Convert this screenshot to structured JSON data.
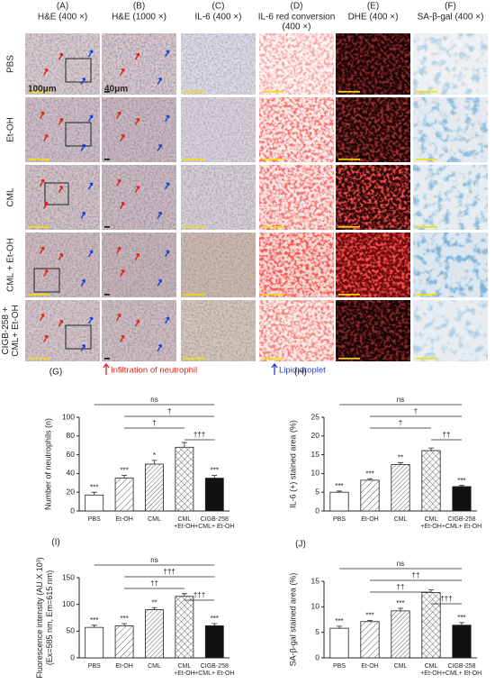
{
  "figure": {
    "columns": [
      {
        "label": "(A)",
        "title": [
          "H&E  (400 ×)"
        ]
      },
      {
        "label": "(B)",
        "title": [
          "H&E  (1000 ×)"
        ]
      },
      {
        "label": "(C)",
        "title": [
          "IL-6 (400 ×)"
        ]
      },
      {
        "label": "(D)",
        "title": [
          "IL-6 red conversion",
          "(400 ×)"
        ]
      },
      {
        "label": "(E)",
        "title": [
          "DHE (400 ×)"
        ]
      },
      {
        "label": "(F)",
        "title": [
          "SA-β-gal (400 ×)"
        ]
      }
    ],
    "rows": [
      [
        "PBS"
      ],
      [
        "Et-OH"
      ],
      [
        "CML"
      ],
      [
        "CML + Et-OH"
      ],
      [
        "CIGB-258 +",
        "CML+ Et-OH"
      ]
    ],
    "scale_labels": [
      "100μm",
      "40μm"
    ],
    "legend": [
      {
        "text": "Infiltration of neutrophil",
        "color": "#e0201b"
      },
      {
        "text": "Lipid droplet",
        "color": "#1f3fd1"
      }
    ]
  },
  "chart_data": [
    {
      "type": "bar",
      "label": "(G)",
      "ylabel": [
        "Number of neutrophils (n)"
      ],
      "categories": [
        [
          "PBS"
        ],
        [
          "Et-OH"
        ],
        [
          "CML"
        ],
        [
          "CML",
          "+Et-OH"
        ],
        [
          "CIGB-258",
          "+CML+ Et-OH"
        ]
      ],
      "values": [
        17,
        35,
        50,
        68,
        35
      ],
      "errors": [
        3,
        3,
        4,
        5,
        3
      ],
      "significance": [
        "***",
        "***",
        "*",
        null,
        "***"
      ],
      "bar_fills": [
        "white",
        "diag",
        "dense",
        "cross",
        "black"
      ],
      "brackets": [
        {
          "from": 0,
          "to": 4,
          "label": "ns"
        },
        {
          "from": 1,
          "to": 4,
          "label": "†"
        },
        {
          "from": 1,
          "to": 3,
          "label": "†"
        },
        {
          "from": 3,
          "to": 4,
          "label": "†††"
        }
      ],
      "ylim": [
        0,
        100
      ],
      "yticks": [
        0,
        20,
        40,
        60,
        80,
        100
      ]
    },
    {
      "type": "bar",
      "label": "(H)",
      "ylabel": [
        "IL-6 (+) stained area (%)"
      ],
      "categories": [
        [
          "PBS"
        ],
        [
          "Et-OH"
        ],
        [
          "CML"
        ],
        [
          "CML",
          "+Et-OH"
        ],
        [
          "CIGB-258",
          "+CML+ Et-OH"
        ]
      ],
      "values": [
        5,
        8.2,
        12.4,
        16.1,
        6.5
      ],
      "errors": [
        0.3,
        0.4,
        0.5,
        0.7,
        0.3
      ],
      "significance": [
        "***",
        "***",
        "**",
        null,
        "***"
      ],
      "bar_fills": [
        "white",
        "diag",
        "dense",
        "cross",
        "black"
      ],
      "brackets": [
        {
          "from": 0,
          "to": 4,
          "label": "ns"
        },
        {
          "from": 1,
          "to": 4,
          "label": "†"
        },
        {
          "from": 1,
          "to": 3,
          "label": "†"
        },
        {
          "from": 3,
          "to": 4,
          "label": "††"
        }
      ],
      "ylim": [
        0,
        25
      ],
      "yticks": [
        0,
        5,
        10,
        15,
        20,
        25
      ]
    },
    {
      "type": "bar",
      "label": "(I)",
      "ylabel": [
        "Fluorescence intensity (AU X 10³)",
        "(Ex=585 nm, Em=615 nm)"
      ],
      "categories": [
        [
          "PBS"
        ],
        [
          "Et-OH"
        ],
        [
          "CML"
        ],
        [
          "CML",
          "+Et-OH"
        ],
        [
          "CIGB-258",
          "+CML+ Et-OH"
        ]
      ],
      "values": [
        57,
        60,
        90,
        115,
        60
      ],
      "errors": [
        4,
        4,
        4,
        5,
        4
      ],
      "significance": [
        "***",
        "***",
        "**",
        null,
        "***"
      ],
      "bar_fills": [
        "white",
        "diag",
        "dense",
        "cross",
        "black"
      ],
      "brackets": [
        {
          "from": 0,
          "to": 4,
          "label": "ns"
        },
        {
          "from": 1,
          "to": 4,
          "label": "†††"
        },
        {
          "from": 1,
          "to": 3,
          "label": "††"
        },
        {
          "from": 3,
          "to": 4,
          "label": "†††"
        }
      ],
      "ylim": [
        0,
        150
      ],
      "yticks": [
        0,
        50,
        100,
        150
      ]
    },
    {
      "type": "bar",
      "label": "(J)",
      "ylabel": [
        "SA-β-gal stained area (%)"
      ],
      "categories": [
        [
          "PBS"
        ],
        [
          "Et-OH"
        ],
        [
          "CML"
        ],
        [
          "CML",
          "+Et-OH"
        ],
        [
          "CIGB-258",
          "+CML+ Et-OH"
        ]
      ],
      "values": [
        5.8,
        7.1,
        9.2,
        12.8,
        6.4
      ],
      "errors": [
        0.4,
        0.2,
        0.5,
        0.5,
        0.5
      ],
      "significance": [
        "***",
        "***",
        "***",
        null,
        "***"
      ],
      "bar_fills": [
        "white",
        "diag",
        "dense",
        "cross",
        "black"
      ],
      "brackets": [
        {
          "from": 0,
          "to": 4,
          "label": "ns"
        },
        {
          "from": 1,
          "to": 4,
          "label": "††"
        },
        {
          "from": 1,
          "to": 3,
          "label": "††"
        },
        {
          "from": 3,
          "to": 4,
          "label": "†††"
        }
      ],
      "ylim": [
        0,
        15
      ],
      "yticks": [
        0,
        5,
        10,
        15
      ]
    }
  ]
}
